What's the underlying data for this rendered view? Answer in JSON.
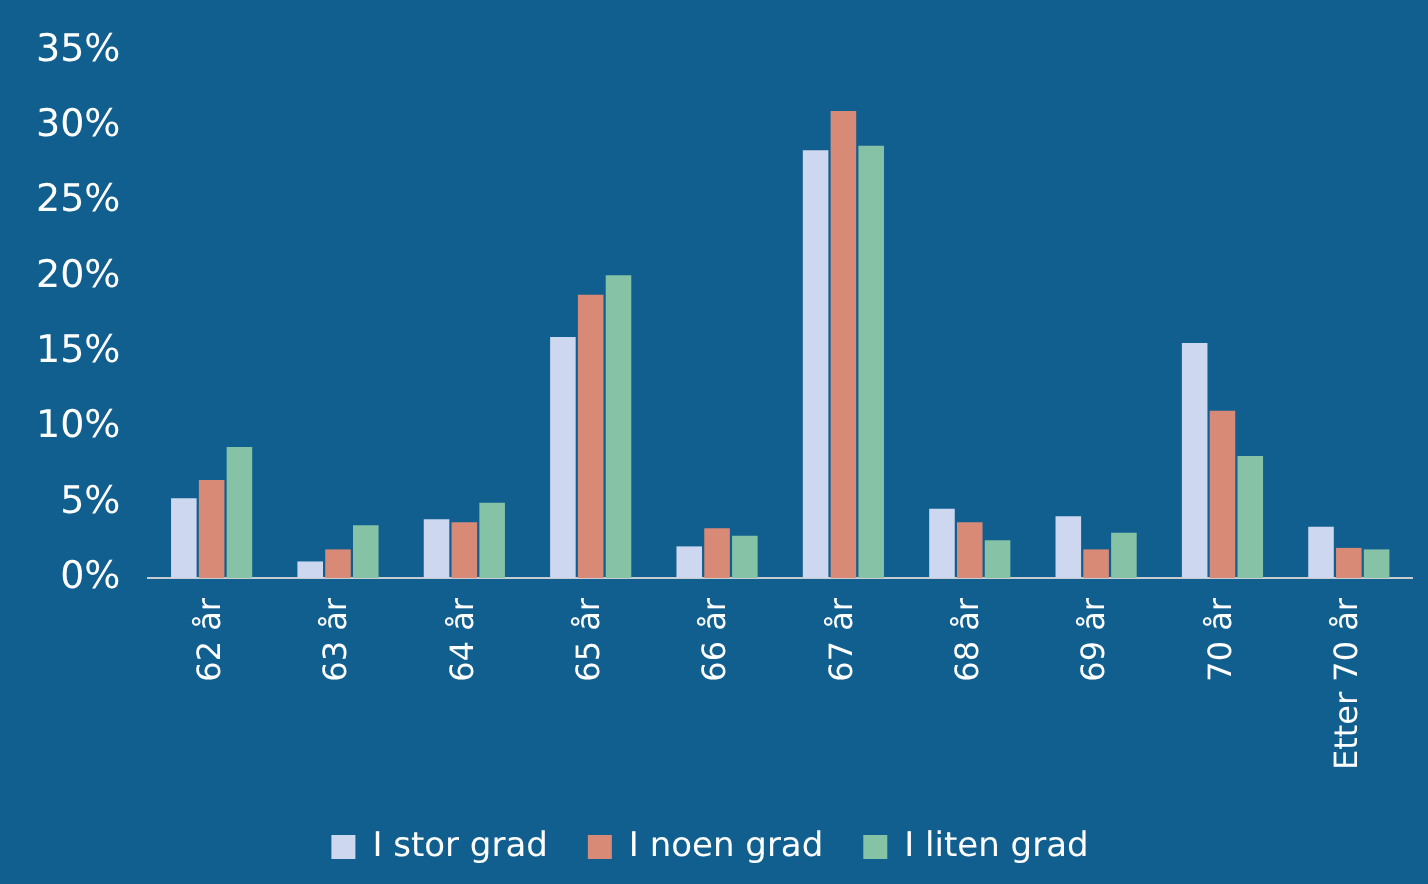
{
  "chart_data": {
    "type": "bar",
    "categories": [
      "62 år",
      "63 år",
      "64 år",
      "65 år",
      "66 år",
      "67 år",
      "68 år",
      "69 år",
      "70 år",
      "Etter 70 år"
    ],
    "series": [
      {
        "name": "I stor grad",
        "color": "#cdd7ef",
        "values": [
          5.3,
          1.1,
          3.9,
          16.0,
          2.1,
          28.4,
          4.6,
          4.1,
          15.6,
          3.4
        ]
      },
      {
        "name": "I noen grad",
        "color": "#d98a77",
        "values": [
          6.5,
          1.9,
          3.7,
          18.8,
          3.3,
          31.0,
          3.7,
          1.9,
          11.1,
          2.0
        ]
      },
      {
        "name": "I liten grad",
        "color": "#86c2a5",
        "values": [
          8.7,
          3.5,
          5.0,
          20.1,
          2.8,
          28.7,
          2.5,
          3.0,
          8.1,
          1.9
        ]
      }
    ],
    "ylim": [
      0,
      35
    ],
    "yticks": [
      {
        "value": 0,
        "label": "0%"
      },
      {
        "value": 5,
        "label": "5%"
      },
      {
        "value": 10,
        "label": "10%"
      },
      {
        "value": 15,
        "label": "15%"
      },
      {
        "value": 20,
        "label": "20%"
      },
      {
        "value": 25,
        "label": "25%"
      },
      {
        "value": 30,
        "label": "30%"
      },
      {
        "value": 35,
        "label": "35%"
      }
    ],
    "grid": false,
    "legend": "bottom"
  }
}
